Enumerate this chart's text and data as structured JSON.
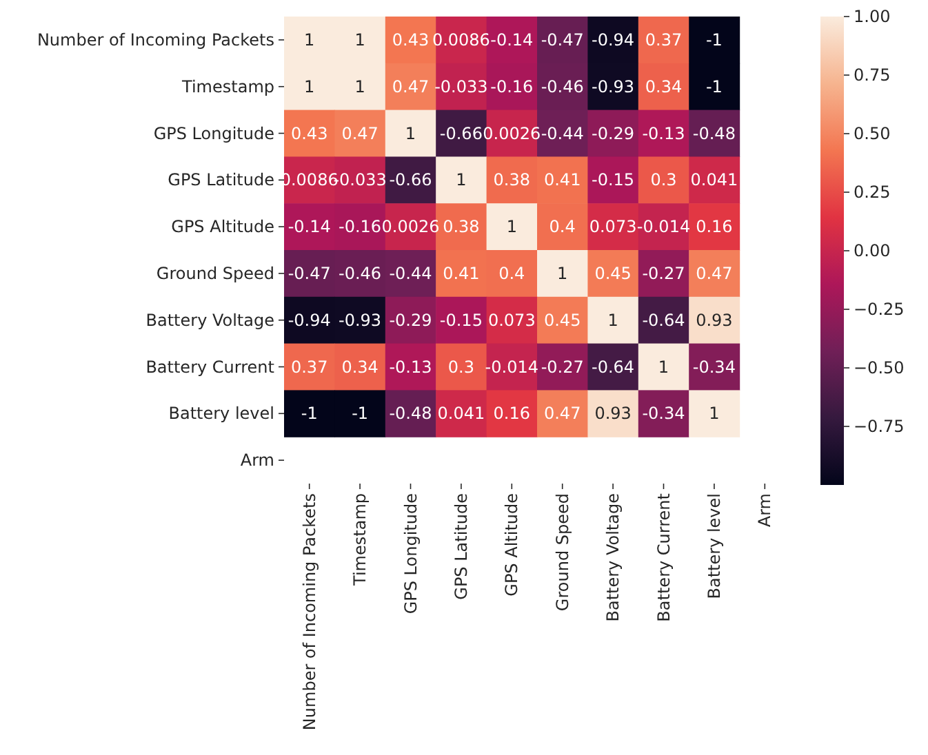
{
  "chart_data": {
    "type": "heatmap",
    "categories": [
      "Number of Incoming Packets",
      "Timestamp",
      "GPS Longitude",
      "GPS Latitude",
      "GPS Altitude",
      "Ground Speed",
      "Battery Voltage",
      "Battery Current",
      "Battery level",
      "Arm"
    ],
    "y_categories": [
      "Number of Incoming Packets",
      "Timestamp",
      "GPS Longitude",
      "GPS Latitude",
      "GPS Altitude",
      "Ground Speed",
      "Battery Voltage",
      "Battery Current",
      "Battery level",
      "Arm"
    ],
    "cells": [
      [
        1,
        1,
        0.43,
        0.0086,
        -0.14,
        -0.47,
        -0.94,
        0.37,
        -1,
        null
      ],
      [
        1,
        1,
        0.47,
        -0.033,
        -0.16,
        -0.46,
        -0.93,
        0.34,
        -1,
        null
      ],
      [
        0.43,
        0.47,
        1,
        -0.66,
        0.0026,
        -0.44,
        -0.29,
        -0.13,
        -0.48,
        null
      ],
      [
        0.0086,
        -0.033,
        -0.66,
        1,
        0.38,
        0.41,
        -0.15,
        0.3,
        0.041,
        null
      ],
      [
        -0.14,
        -0.16,
        0.0026,
        0.38,
        1,
        0.4,
        0.073,
        -0.014,
        0.16,
        null
      ],
      [
        -0.47,
        -0.46,
        -0.44,
        0.41,
        0.4,
        1,
        0.45,
        -0.27,
        0.47,
        null
      ],
      [
        -0.94,
        -0.93,
        -0.29,
        -0.15,
        0.073,
        0.45,
        1,
        -0.64,
        0.93,
        null
      ],
      [
        0.37,
        0.34,
        -0.13,
        0.3,
        -0.014,
        -0.27,
        -0.64,
        1,
        -0.34,
        null
      ],
      [
        -1,
        -1,
        -0.48,
        0.041,
        0.16,
        0.47,
        0.93,
        -0.34,
        1,
        null
      ],
      [
        null,
        null,
        null,
        null,
        null,
        null,
        null,
        null,
        null,
        null
      ]
    ],
    "clim": [
      -1,
      1
    ],
    "cticks": [
      {
        "value": 1,
        "label": "1.00"
      },
      0.75,
      {
        "value": 0.5,
        "label": "0.50"
      },
      0.25,
      {
        "value": 0,
        "label": "0.00"
      },
      {
        "value": -0.25,
        "label": "−0.25"
      },
      {
        "value": -0.5,
        "label": "−0.50"
      },
      {
        "value": -0.75,
        "label": "−0.75"
      }
    ],
    "data_labels": true
  }
}
